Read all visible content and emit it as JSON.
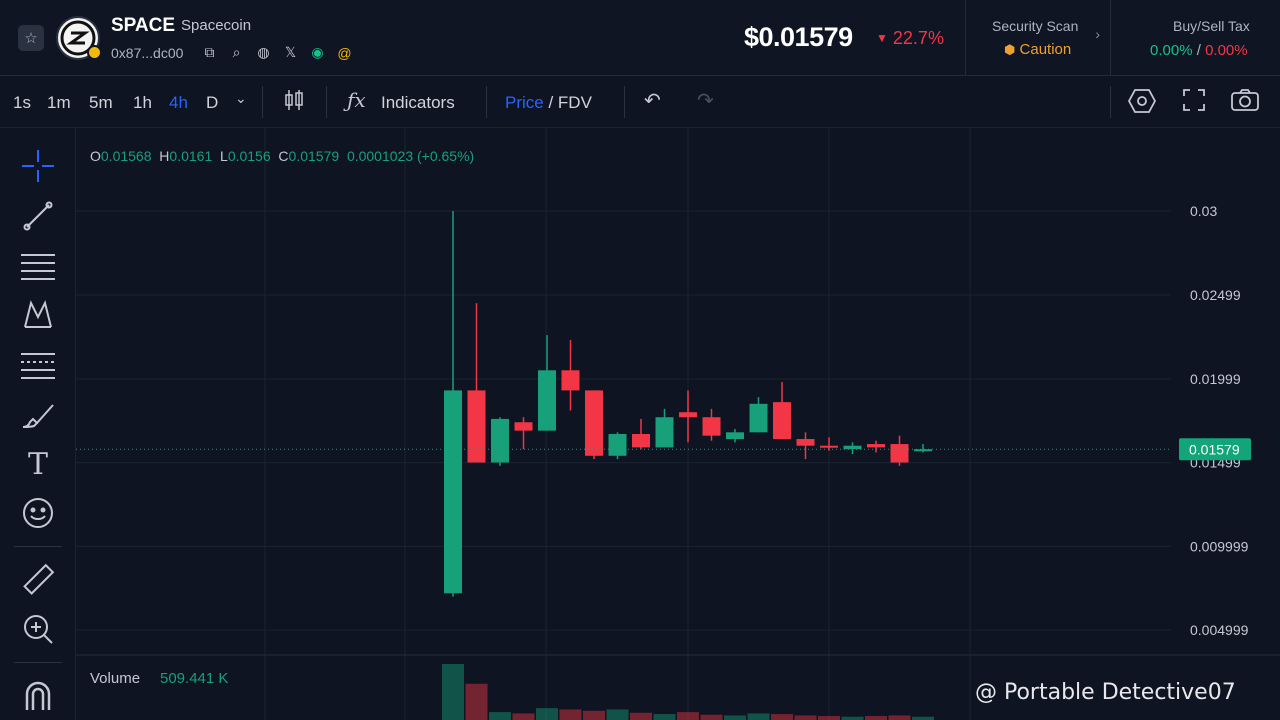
{
  "header": {
    "token_symbol": "SPACE",
    "token_name": "Spacecoin",
    "address": "0x87...dc00",
    "price": "$0.01579",
    "price_change": "22.7%",
    "security": {
      "title": "Security Scan",
      "value": "Caution"
    },
    "tax": {
      "title": "Buy/Sell Tax",
      "buy": "0.00%",
      "separator": " / ",
      "sell": "0.00%"
    }
  },
  "toolbar": {
    "timeframes": [
      "1s",
      "1m",
      "5m",
      "1h",
      "4h",
      "D"
    ],
    "active_timeframe": "4h",
    "indicators_label": "Indicators",
    "price_label": "Price",
    "separator": " / ",
    "fdv_label": "FDV"
  },
  "legend": {
    "o_key": "O",
    "o": "0.01568",
    "h_key": "H",
    "h": "0.0161",
    "l_key": "L",
    "l": "0.0156",
    "c_key": "C",
    "c": "0.01579",
    "change": "0.0001023 (+0.65%)"
  },
  "volume": {
    "label": "Volume",
    "value": "509.441 K"
  },
  "watermark": "@ Portable Detective07",
  "colors": {
    "up": "#18a07a",
    "down": "#f23645",
    "accent": "#2962ff",
    "background": "#0e1421",
    "grid": "#1c2331"
  },
  "chart_data": {
    "type": "candlestick",
    "y_ticks": [
      "0.03",
      "0.02499",
      "0.01999",
      "0.01499",
      "0.009999",
      "0.004999"
    ],
    "ylim": [
      0.0,
      0.0335
    ],
    "last_price_label": "0.01579",
    "last_price": 0.01579,
    "candles": [
      {
        "o": 0.0072,
        "h": 0.03,
        "l": 0.007,
        "c": 0.0193,
        "v": 85
      },
      {
        "o": 0.0193,
        "h": 0.0245,
        "l": 0.015,
        "c": 0.015,
        "v": 55
      },
      {
        "o": 0.015,
        "h": 0.0177,
        "l": 0.0148,
        "c": 0.0176,
        "v": 12
      },
      {
        "o": 0.0174,
        "h": 0.0177,
        "l": 0.0158,
        "c": 0.0169,
        "v": 10
      },
      {
        "o": 0.0169,
        "h": 0.0226,
        "l": 0.0169,
        "c": 0.0205,
        "v": 18
      },
      {
        "o": 0.0205,
        "h": 0.0223,
        "l": 0.0181,
        "c": 0.0193,
        "v": 16
      },
      {
        "o": 0.0193,
        "h": 0.0193,
        "l": 0.0152,
        "c": 0.0154,
        "v": 14
      },
      {
        "o": 0.0154,
        "h": 0.0168,
        "l": 0.0152,
        "c": 0.0167,
        "v": 16
      },
      {
        "o": 0.0167,
        "h": 0.0176,
        "l": 0.0158,
        "c": 0.0159,
        "v": 11
      },
      {
        "o": 0.0159,
        "h": 0.0182,
        "l": 0.0159,
        "c": 0.0177,
        "v": 9
      },
      {
        "o": 0.018,
        "h": 0.0193,
        "l": 0.0162,
        "c": 0.0177,
        "v": 12
      },
      {
        "o": 0.0177,
        "h": 0.0182,
        "l": 0.0163,
        "c": 0.0166,
        "v": 8
      },
      {
        "o": 0.0164,
        "h": 0.017,
        "l": 0.0162,
        "c": 0.0168,
        "v": 7
      },
      {
        "o": 0.0168,
        "h": 0.0189,
        "l": 0.0168,
        "c": 0.0185,
        "v": 10
      },
      {
        "o": 0.0186,
        "h": 0.0198,
        "l": 0.0164,
        "c": 0.0164,
        "v": 9
      },
      {
        "o": 0.0164,
        "h": 0.0168,
        "l": 0.0152,
        "c": 0.016,
        "v": 7
      },
      {
        "o": 0.016,
        "h": 0.0165,
        "l": 0.0157,
        "c": 0.0159,
        "v": 6
      },
      {
        "o": 0.0158,
        "h": 0.0162,
        "l": 0.0155,
        "c": 0.016,
        "v": 5
      },
      {
        "o": 0.0161,
        "h": 0.0163,
        "l": 0.0156,
        "c": 0.0159,
        "v": 6
      },
      {
        "o": 0.0161,
        "h": 0.0166,
        "l": 0.0148,
        "c": 0.015,
        "v": 7
      },
      {
        "o": 0.01568,
        "h": 0.0161,
        "l": 0.0156,
        "c": 0.01579,
        "v": 5
      }
    ]
  }
}
